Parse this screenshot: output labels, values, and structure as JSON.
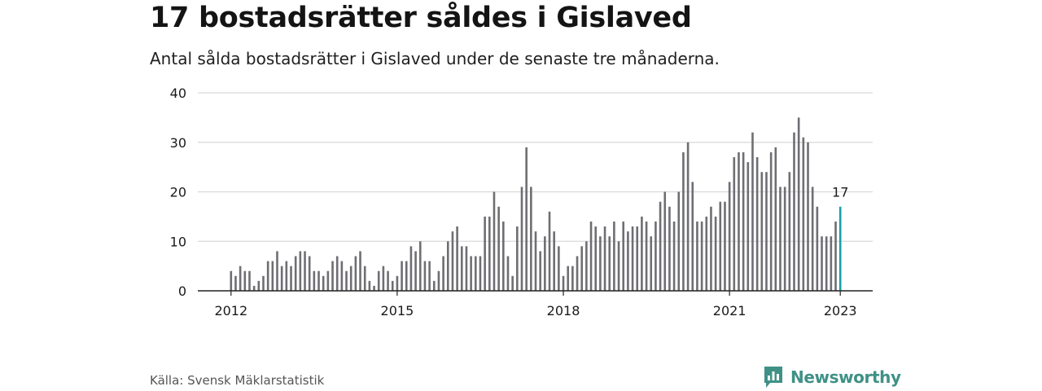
{
  "title": "17 bostadsrätter såldes i Gislaved",
  "subtitle": "Antal sålda bostadsrätter i Gislaved under de senaste tre månaderna.",
  "source": "Källa: Svensk Mäklarstatistik",
  "brand": {
    "name": "Newsworthy",
    "icon": "newsworthy-logo-icon",
    "color": "#3f9186"
  },
  "colors": {
    "bars": "#6e6e73",
    "highlight": "#16a0a8",
    "grid": "#d9d9d9",
    "axis": "#222222"
  },
  "chart_data": {
    "type": "bar",
    "title": "17 bostadsrätter såldes i Gislaved",
    "xlabel": "",
    "ylabel": "",
    "x_start": "2012-01",
    "x_end": "2023-01",
    "x_ticks": [
      "2012",
      "2015",
      "2018",
      "2021",
      "2023"
    ],
    "y_ticks": [
      0,
      10,
      20,
      30,
      40
    ],
    "ylim": [
      0,
      40
    ],
    "grid": true,
    "legend": "none",
    "values": [
      4,
      3,
      5,
      4,
      4,
      1,
      2,
      3,
      6,
      6,
      8,
      5,
      6,
      5,
      7,
      8,
      8,
      7,
      4,
      4,
      3,
      4,
      6,
      7,
      6,
      4,
      5,
      7,
      8,
      5,
      2,
      1,
      4,
      5,
      4,
      2,
      3,
      6,
      6,
      9,
      8,
      10,
      6,
      6,
      2,
      4,
      7,
      10,
      12,
      13,
      9,
      9,
      7,
      7,
      7,
      15,
      15,
      20,
      17,
      14,
      7,
      3,
      13,
      21,
      29,
      21,
      12,
      8,
      11,
      16,
      12,
      9,
      3,
      5,
      5,
      7,
      9,
      10,
      14,
      13,
      11,
      13,
      11,
      14,
      10,
      14,
      12,
      13,
      13,
      15,
      14,
      11,
      14,
      18,
      20,
      17,
      14,
      20,
      28,
      30,
      22,
      14,
      14,
      15,
      17,
      15,
      18,
      18,
      22,
      27,
      28,
      28,
      26,
      32,
      27,
      24,
      24,
      28,
      29,
      21,
      21,
      24,
      32,
      35,
      31,
      30,
      21,
      17,
      11,
      11,
      11,
      14,
      17
    ],
    "highlight": {
      "x": "2023-01",
      "value": 17,
      "label": "17"
    }
  }
}
